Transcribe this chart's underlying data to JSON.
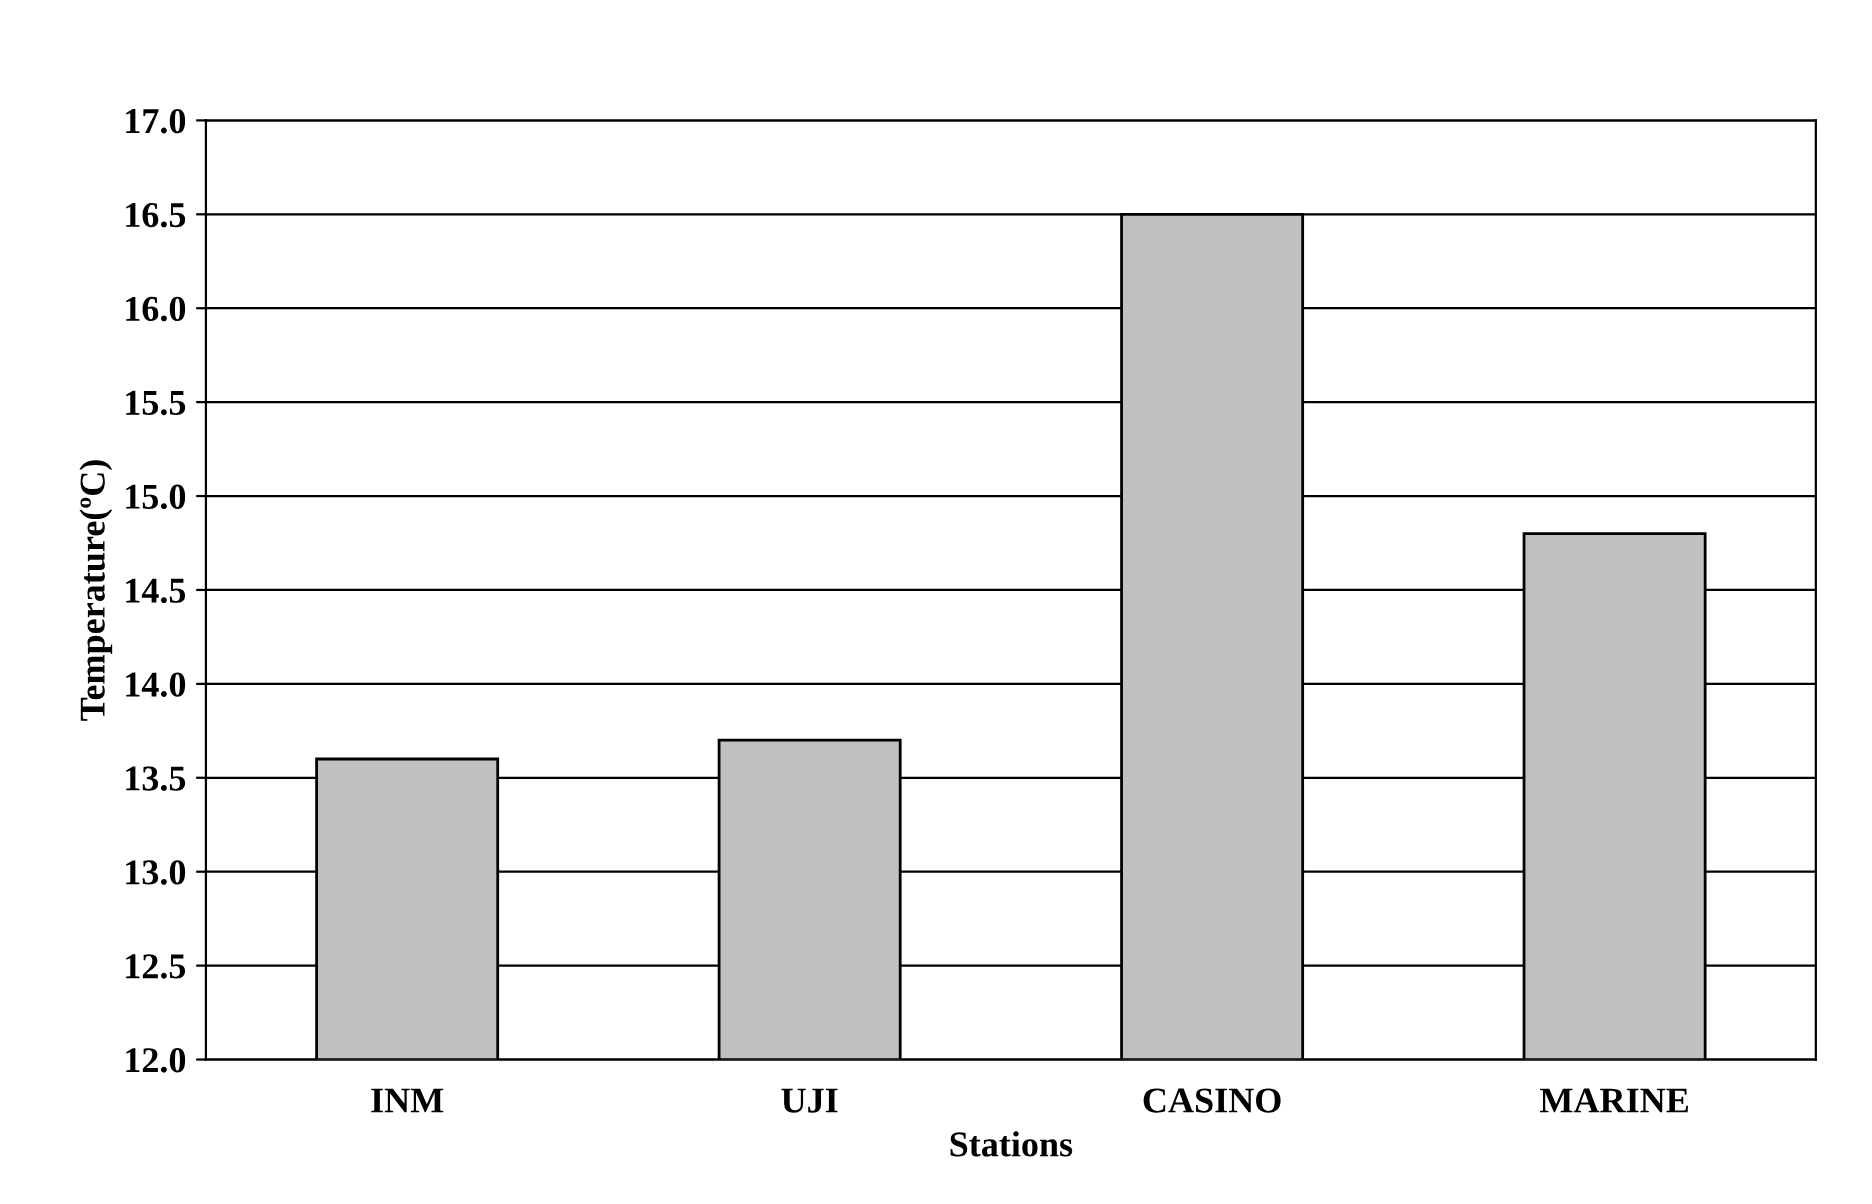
{
  "chart_data": {
    "type": "bar",
    "xlabel": "Stations",
    "ylabel": "Temperature(ºC)",
    "categories": [
      "INM",
      "UJI",
      "CASINO",
      "MARINE"
    ],
    "values": [
      13.6,
      13.7,
      16.5,
      14.8
    ],
    "color": "#c0c0c0",
    "ylim": [
      12.0,
      17.0
    ],
    "yticks": [
      {
        "value": 12.0,
        "label": "12.0"
      },
      {
        "value": 12.5,
        "label": "12.5"
      },
      {
        "value": 13.0,
        "label": "13.0"
      },
      {
        "value": 13.5,
        "label": "13.5"
      },
      {
        "value": 14.0,
        "label": "14.0"
      },
      {
        "value": 14.5,
        "label": "14.5"
      },
      {
        "value": 15.0,
        "label": "15.0"
      },
      {
        "value": 15.5,
        "label": "15.5"
      },
      {
        "value": 16.0,
        "label": "16.0"
      },
      {
        "value": 16.5,
        "label": "16.5"
      },
      {
        "value": 17.0,
        "label": "17.0"
      }
    ],
    "grid": "y"
  }
}
